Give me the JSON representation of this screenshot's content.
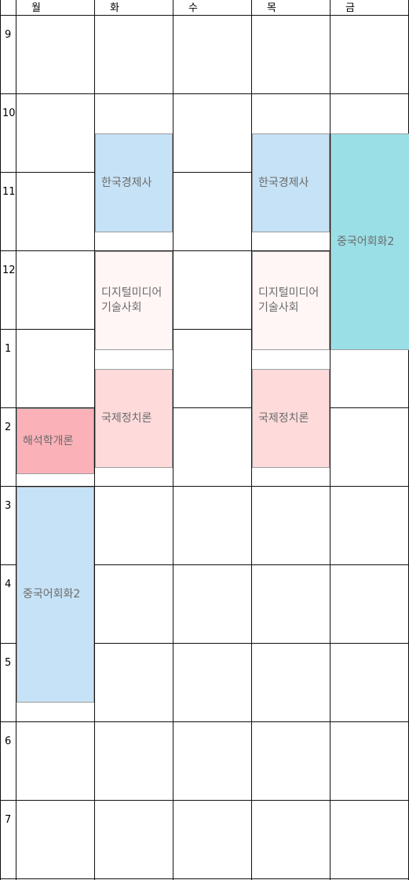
{
  "days": [
    "월",
    "화",
    "수",
    "목",
    "금"
  ],
  "hours": [
    "9",
    "10",
    "11",
    "12",
    "1",
    "2",
    "3",
    "4",
    "5",
    "6",
    "7"
  ],
  "courses": [
    {
      "title": "해석학개론",
      "color": "#fbb1b8"
    },
    {
      "title": "중국어회화2",
      "color": "#c6e2f6"
    },
    {
      "title": "한국경제사",
      "color": "#c6e2f6"
    },
    {
      "title": "디지털미디어\n기술사회",
      "color": "#fff6f5"
    },
    {
      "title": "국제정치론",
      "color": "#fedadb"
    },
    {
      "title": "한국경제사",
      "color": "#c6e2f6"
    },
    {
      "title": "디지털미디어\n기술사회",
      "color": "#fff6f5"
    },
    {
      "title": "국제정치론",
      "color": "#fedadb"
    },
    {
      "title": "중국어회화2",
      "color": "#9adfe6"
    }
  ]
}
